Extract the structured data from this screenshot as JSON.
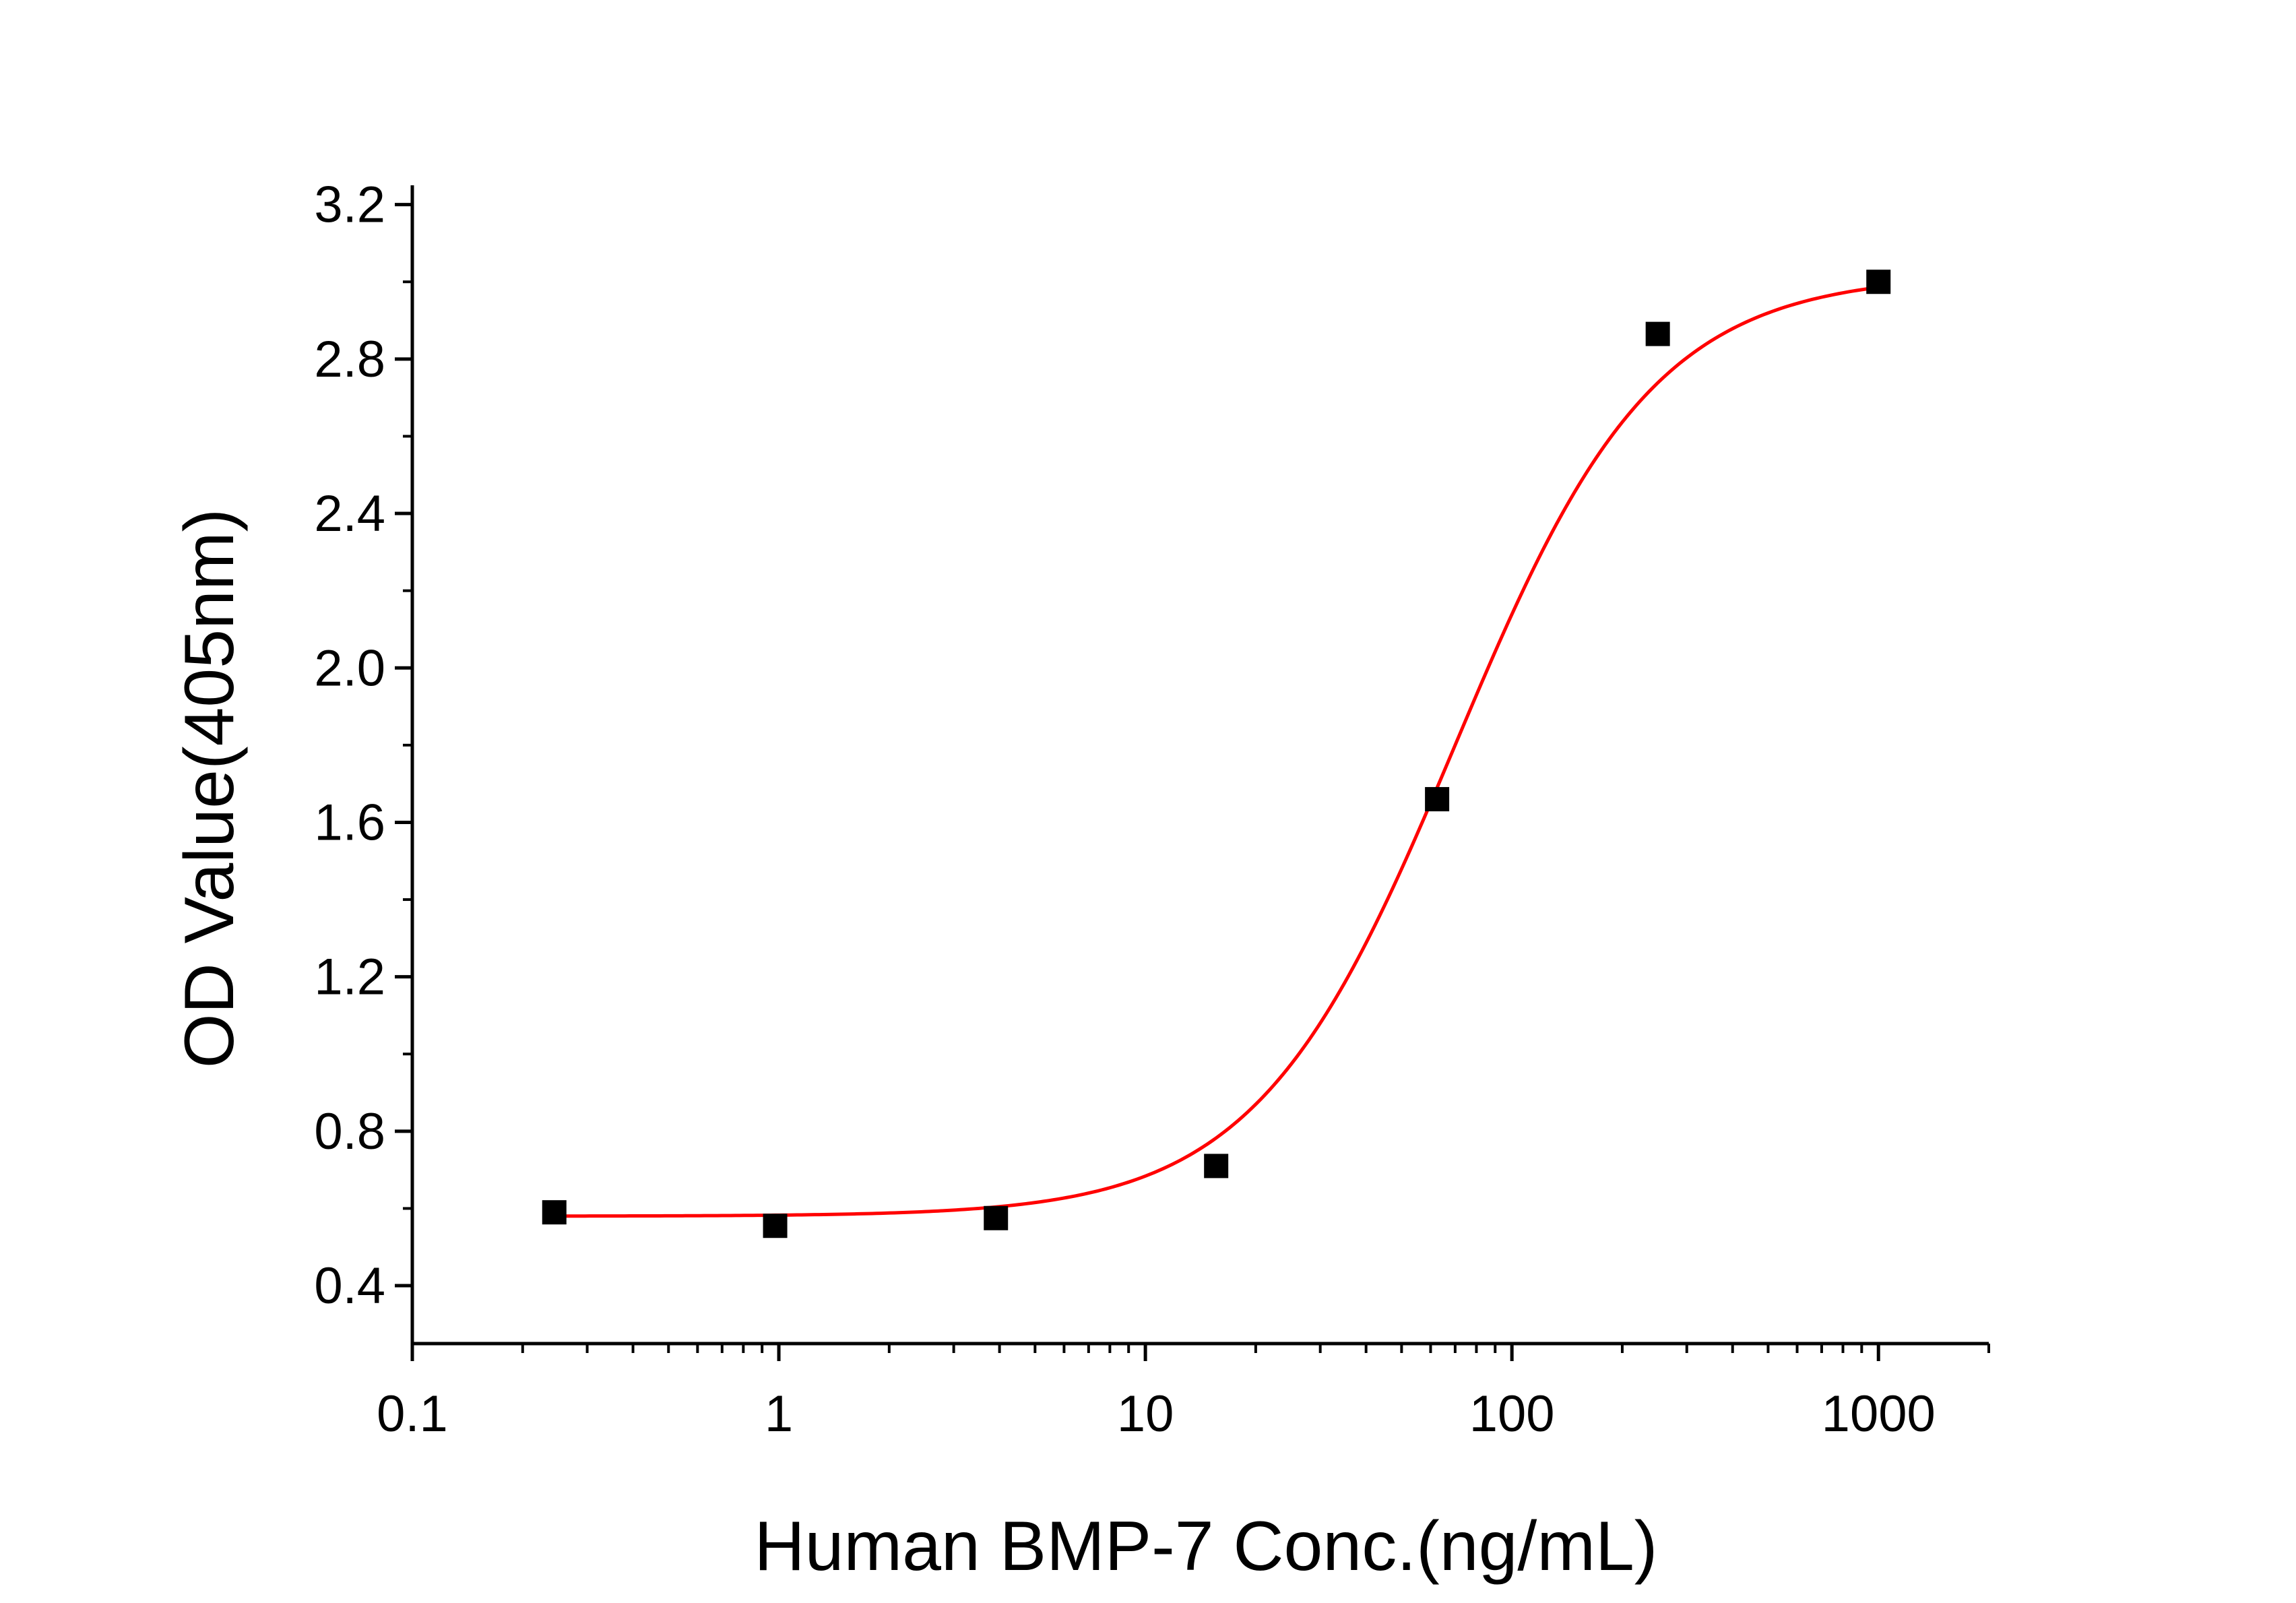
{
  "chart_data": {
    "type": "scatter",
    "title": "",
    "xlabel": "Human BMP-7 Conc.(ng/mL)",
    "ylabel": "OD Value(405nm)",
    "x_scale": "log",
    "xlim": [
      0.1,
      2000
    ],
    "ylim": [
      0.25,
      3.25
    ],
    "x_ticks": [
      0.1,
      1,
      10,
      100,
      1000
    ],
    "x_tick_labels": [
      "0.1",
      "1",
      "10",
      "100",
      "1000"
    ],
    "y_ticks": [
      0.4,
      0.8,
      1.2,
      1.6,
      2.0,
      2.4,
      2.8,
      3.2
    ],
    "y_tick_labels": [
      "0.4",
      "0.8",
      "1.2",
      "1.6",
      "2.0",
      "2.4",
      "2.8",
      "3.2"
    ],
    "grid": false,
    "legend": "none",
    "series": [
      {
        "type": "scatter",
        "marker": "square",
        "color": "#000000",
        "x": [
          0.244,
          0.977,
          3.91,
          15.6,
          62.5,
          250,
          1000
        ],
        "y": [
          0.59,
          0.555,
          0.575,
          0.71,
          1.66,
          2.865,
          3.0
        ]
      },
      {
        "type": "line",
        "fit": "four-parameter logistic",
        "color": "#ff0000",
        "bottom": 0.58,
        "top": 3.02,
        "ec50": 70,
        "hill": 1.6,
        "x_range": [
          0.244,
          1000
        ]
      }
    ]
  }
}
